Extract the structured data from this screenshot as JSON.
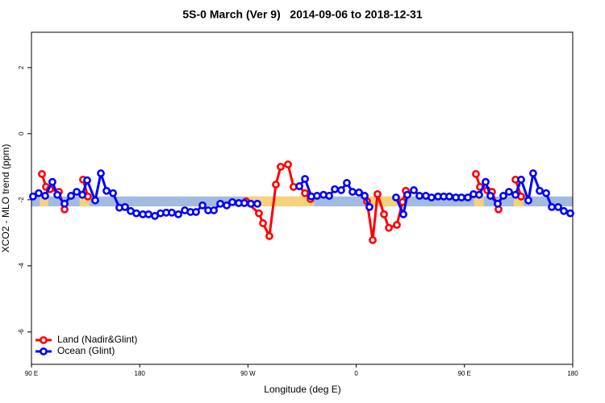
{
  "chart_data": {
    "type": "line",
    "title": "5S-0 March (Ver 9)   2014-09-06 to 2018-12-31",
    "x_label": "Longitude (deg E)",
    "y_label": "XCO2 - MLO trend (ppm)",
    "xlim": [
      90,
      540
    ],
    "xticks": [
      {
        "value": 90,
        "label": "90 E"
      },
      {
        "value": 180,
        "label": "180"
      },
      {
        "value": 270,
        "label": "90 W"
      },
      {
        "value": 360,
        "label": "0"
      },
      {
        "value": 450,
        "label": "90 E"
      },
      {
        "value": 540,
        "label": "180"
      }
    ],
    "ylim": [
      -6.98,
      3.07
    ],
    "yticks": [
      2,
      0,
      -2,
      -4,
      -6
    ],
    "band_ylim": [
      -2.2,
      -1.9
    ],
    "band_color": "#a3bbdf",
    "band_land_color": "#f7d27c",
    "band_land_x": [
      [
        97,
        104
      ],
      [
        130,
        138
      ],
      [
        270,
        325
      ],
      [
        368,
        402
      ],
      [
        458,
        466
      ],
      [
        491,
        499
      ]
    ],
    "legend": "bottom-left",
    "series": [
      {
        "name": "Land (Nadir&Glint)",
        "color": "#ff0000",
        "x": [
          98.7,
          102.1,
          105.4,
          112.8,
          117.5,
          null,
          132.9,
          136.9,
          null,
          268.4,
          279.1,
          282.5,
          287.8,
          293.2,
          297.2,
          303.3,
          307.9,
          312.7,
          317.4,
          322,
          null,
          369,
          373.7,
          377.7,
          383.1,
          387.1,
          393.8,
          398.5,
          401.2,
          null,
          459.5,
          462.9,
          468.9,
          472.9,
          478.3,
          null,
          492.4,
          497.1
        ],
        "values": [
          -1.22,
          -1.61,
          -1.68,
          -1.76,
          -2.29,
          null,
          -1.39,
          -1.9,
          null,
          -2.05,
          -2.41,
          -2.71,
          -3.1,
          -1.54,
          -1.0,
          -0.93,
          -1.61,
          -1.59,
          -1.8,
          -1.98,
          null,
          -2.05,
          -3.22,
          -1.83,
          -2.44,
          -2.85,
          -2.76,
          -2.07,
          -1.73,
          null,
          -1.22,
          -1.61,
          -1.71,
          -1.76,
          -2.29,
          null,
          -1.39,
          -1.9
        ]
      },
      {
        "name": "Ocean (Glint)",
        "color": "#0000ff",
        "x": [
          91.3,
          96,
          101.4,
          107.4,
          111.5,
          117.5,
          122.9,
          127.6,
          132.3,
          136.3,
          143,
          147.7,
          152.4,
          157.8,
          163.1,
          167.8,
          172.5,
          177.2,
          182.6,
          187.3,
          192.6,
          197.3,
          202,
          206.7,
          212.1,
          217.5,
          222.2,
          226.8,
          232.2,
          236.9,
          241.6,
          247,
          252.3,
          257,
          262.4,
          267,
          272.4,
          277.8,
          null,
          312.7,
          317.4,
          322.7,
          327.4,
          332.8,
          337.5,
          342.2,
          347.5,
          352.2,
          356.9,
          362.3,
          367,
          371,
          null,
          393.1,
          399.2,
          402.5,
          407.9,
          412.6,
          417.9,
          422.6,
          428,
          432.7,
          437.4,
          442.8,
          447.5,
          452.8,
          457.5,
          462.2,
          467.6,
          471.6,
          477.6,
          482.3,
          487,
          492.4,
          497.1,
          503.1,
          507.1,
          512.5,
          517.9,
          522.6,
          527.9,
          532.6,
          538
        ],
        "values": [
          -1.9,
          -1.8,
          -1.88,
          -1.46,
          -1.85,
          -2.12,
          -1.88,
          -1.76,
          -1.85,
          -1.41,
          -2.02,
          -1.2,
          -1.73,
          -1.8,
          -2.24,
          -2.22,
          -2.34,
          -2.41,
          -2.44,
          -2.44,
          -2.49,
          -2.41,
          -2.39,
          -2.39,
          -2.44,
          -2.32,
          -2.37,
          -2.37,
          -2.17,
          -2.32,
          -2.32,
          -2.12,
          -2.17,
          -2.07,
          -2.1,
          -2.1,
          -2.12,
          -2.12,
          null,
          -1.59,
          -1.37,
          -1.9,
          -1.88,
          -1.85,
          -1.88,
          -1.68,
          -1.71,
          -1.49,
          -1.76,
          -1.78,
          -1.88,
          -2.22,
          null,
          -1.93,
          -2.44,
          -1.85,
          -1.71,
          -1.88,
          -1.88,
          -1.93,
          -1.9,
          -1.9,
          -1.9,
          -1.93,
          -1.93,
          -1.93,
          -1.83,
          -1.85,
          -1.46,
          -1.88,
          -2.12,
          -1.88,
          -1.76,
          -1.85,
          -1.39,
          -2.02,
          -1.2,
          -1.73,
          -1.8,
          -2.22,
          -2.22,
          -2.34,
          -2.41
        ]
      }
    ]
  }
}
